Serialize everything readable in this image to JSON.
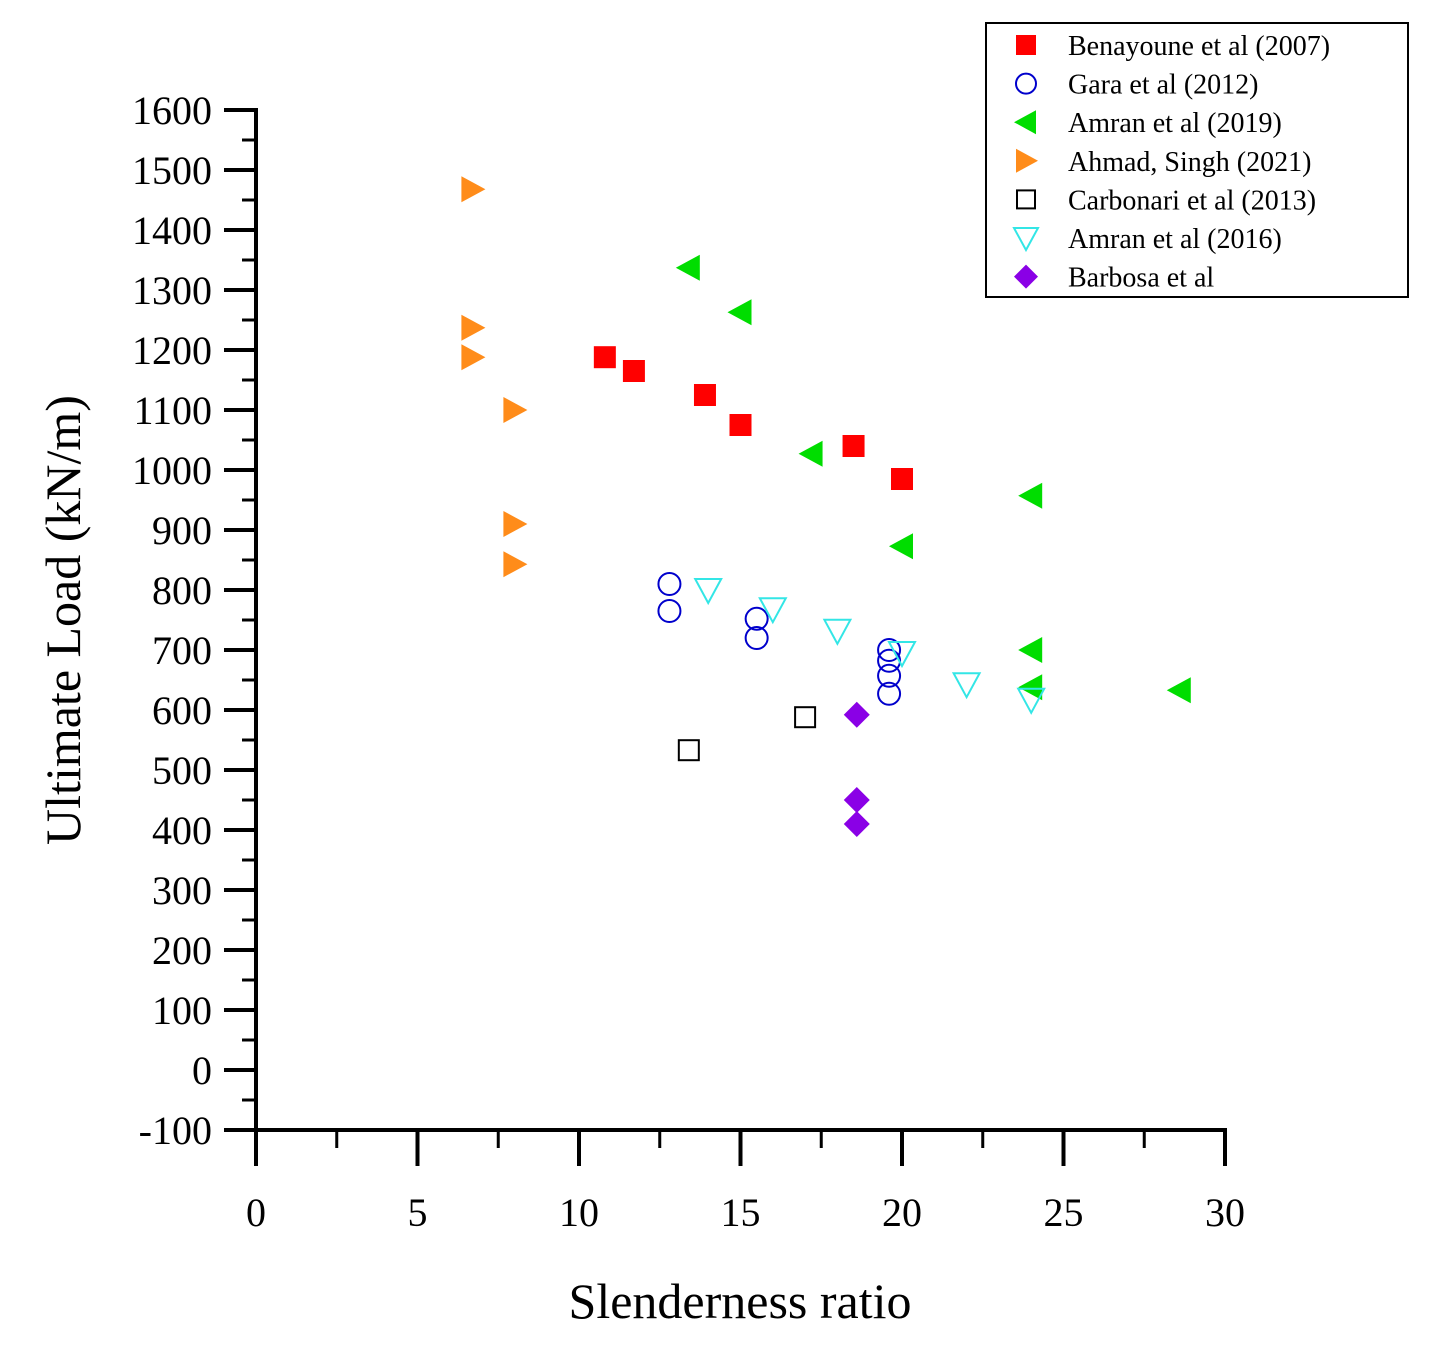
{
  "chart_data": {
    "type": "scatter",
    "xlabel": "Slenderness ratio",
    "ylabel": "Ultimate Load (kN/m)",
    "xlim": [
      0,
      30
    ],
    "ylim": [
      -100,
      1600
    ],
    "x_ticks": [
      0,
      5,
      10,
      15,
      20,
      25,
      30
    ],
    "y_ticks": [
      -100,
      0,
      100,
      200,
      300,
      400,
      500,
      600,
      700,
      800,
      900,
      1000,
      1100,
      1200,
      1300,
      1400,
      1500,
      1600
    ],
    "grid": false,
    "legend_position": "top-right",
    "series": [
      {
        "name": "Benayoune et al (2007)",
        "marker": "square-filled",
        "color": "#ff0000",
        "points": [
          [
            10.8,
            1188
          ],
          [
            11.7,
            1165
          ],
          [
            13.9,
            1125
          ],
          [
            15.0,
            1075
          ],
          [
            18.5,
            1040
          ],
          [
            20.0,
            985
          ]
        ]
      },
      {
        "name": "Gara et al (2012)",
        "marker": "circle-open",
        "color": "#0000cc",
        "points": [
          [
            12.8,
            810
          ],
          [
            12.8,
            765
          ],
          [
            15.5,
            752
          ],
          [
            15.5,
            720
          ],
          [
            19.6,
            700
          ],
          [
            19.6,
            682
          ],
          [
            19.6,
            657
          ],
          [
            19.6,
            627
          ]
        ]
      },
      {
        "name": "Amran et al (2019)",
        "marker": "triangle-left-filled",
        "color": "#00dd00",
        "points": [
          [
            13.4,
            1337
          ],
          [
            15.0,
            1263
          ],
          [
            17.2,
            1027
          ],
          [
            20.0,
            873
          ],
          [
            24.0,
            957
          ],
          [
            24.0,
            700
          ],
          [
            24.0,
            638
          ],
          [
            28.6,
            633
          ]
        ]
      },
      {
        "name": "Ahmad, Singh (2021)",
        "marker": "triangle-right-filled",
        "color": "#ff8c1a",
        "points": [
          [
            6.7,
            1468
          ],
          [
            6.7,
            1237
          ],
          [
            6.7,
            1188
          ],
          [
            8.0,
            1100
          ],
          [
            8.0,
            910
          ],
          [
            8.0,
            843
          ]
        ]
      },
      {
        "name": "Carbonari et al (2013)",
        "marker": "square-open",
        "color": "#000000",
        "points": [
          [
            13.4,
            533
          ],
          [
            17.0,
            588
          ]
        ]
      },
      {
        "name": "Amran et al (2016)",
        "marker": "triangle-down-open",
        "color": "#33e6e6",
        "points": [
          [
            14.0,
            800
          ],
          [
            16.0,
            768
          ],
          [
            18.0,
            732
          ],
          [
            20.0,
            695
          ],
          [
            22.0,
            643
          ],
          [
            24.0,
            617
          ]
        ]
      },
      {
        "name": "Barbosa et al",
        "marker": "diamond-filled",
        "color": "#8a00e6",
        "points": [
          [
            18.6,
            592
          ],
          [
            18.6,
            450
          ],
          [
            18.6,
            410
          ]
        ]
      }
    ]
  }
}
